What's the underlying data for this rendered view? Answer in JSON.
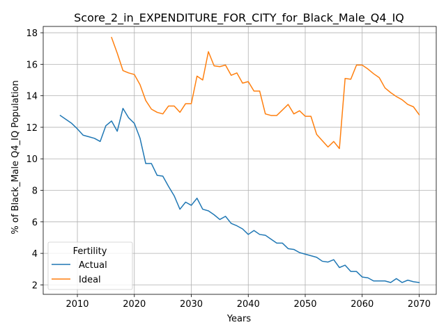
{
  "chart_data": {
    "type": "line",
    "title": "Score_2_in_EXPENDITURE_FOR_CITY_for_Black_Male_Q4_IQ",
    "xlabel": "Years",
    "ylabel": "% of Black_Male Q4_IQ Population",
    "xlim": [
      2004,
      2073
    ],
    "ylim": [
      1.4,
      18.4
    ],
    "xticks": [
      2010,
      2020,
      2030,
      2040,
      2050,
      2060,
      2070
    ],
    "yticks": [
      2,
      4,
      6,
      8,
      10,
      12,
      14,
      16,
      18
    ],
    "grid": true,
    "legend": {
      "title": "Fertility",
      "placement": "lower-left"
    },
    "series": [
      {
        "name": "Actual",
        "color": "#1f77b4",
        "x": [
          2007,
          2008,
          2009,
          2010,
          2011,
          2012,
          2013,
          2014,
          2015,
          2016,
          2017,
          2018,
          2019,
          2020,
          2021,
          2022,
          2023,
          2024,
          2025,
          2026,
          2027,
          2028,
          2029,
          2030,
          2031,
          2032,
          2033,
          2034,
          2035,
          2036,
          2037,
          2038,
          2039,
          2040,
          2041,
          2042,
          2043,
          2044,
          2045,
          2046,
          2047,
          2048,
          2049,
          2050,
          2051,
          2052,
          2053,
          2054,
          2055,
          2056,
          2057,
          2058,
          2059,
          2060,
          2061,
          2062,
          2063,
          2064,
          2065,
          2066,
          2067,
          2068,
          2069,
          2070
        ],
        "values": [
          12.75,
          12.5,
          12.25,
          11.9,
          11.5,
          11.4,
          11.3,
          11.1,
          12.1,
          12.4,
          11.75,
          13.2,
          12.6,
          12.25,
          11.3,
          9.7,
          9.7,
          8.95,
          8.9,
          8.25,
          7.65,
          6.8,
          7.25,
          7.05,
          7.5,
          6.8,
          6.7,
          6.45,
          6.15,
          6.35,
          5.9,
          5.75,
          5.55,
          5.2,
          5.45,
          5.2,
          5.15,
          4.9,
          4.65,
          4.65,
          4.3,
          4.25,
          4.05,
          3.95,
          3.85,
          3.75,
          3.5,
          3.45,
          3.6,
          3.1,
          3.25,
          2.85,
          2.85,
          2.5,
          2.45,
          2.25,
          2.25,
          2.25,
          2.15,
          2.4,
          2.15,
          2.3,
          2.2,
          2.15
        ]
      },
      {
        "name": "Ideal",
        "color": "#ff7f0e",
        "x": [
          2016,
          2017,
          2018,
          2019,
          2020,
          2021,
          2022,
          2023,
          2024,
          2025,
          2026,
          2027,
          2028,
          2029,
          2030,
          2031,
          2032,
          2033,
          2034,
          2035,
          2036,
          2037,
          2038,
          2039,
          2040,
          2041,
          2042,
          2043,
          2044,
          2045,
          2046,
          2047,
          2048,
          2049,
          2050,
          2051,
          2052,
          2053,
          2054,
          2055,
          2056,
          2057,
          2058,
          2059,
          2060,
          2061,
          2062,
          2063,
          2064,
          2065,
          2066,
          2067,
          2068,
          2069,
          2070
        ],
        "values": [
          17.7,
          16.7,
          15.6,
          15.45,
          15.35,
          14.7,
          13.7,
          13.15,
          12.95,
          12.85,
          13.35,
          13.35,
          12.95,
          13.5,
          13.5,
          15.25,
          15.0,
          16.8,
          15.9,
          15.85,
          15.95,
          15.3,
          15.45,
          14.8,
          14.9,
          14.3,
          14.3,
          12.85,
          12.75,
          12.75,
          13.1,
          13.45,
          12.85,
          13.05,
          12.7,
          12.7,
          11.55,
          11.15,
          10.75,
          11.1,
          10.65,
          15.1,
          15.05,
          15.95,
          15.95,
          15.7,
          15.4,
          15.15,
          14.5,
          14.2,
          13.95,
          13.75,
          13.45,
          13.3,
          12.8
        ]
      }
    ]
  }
}
